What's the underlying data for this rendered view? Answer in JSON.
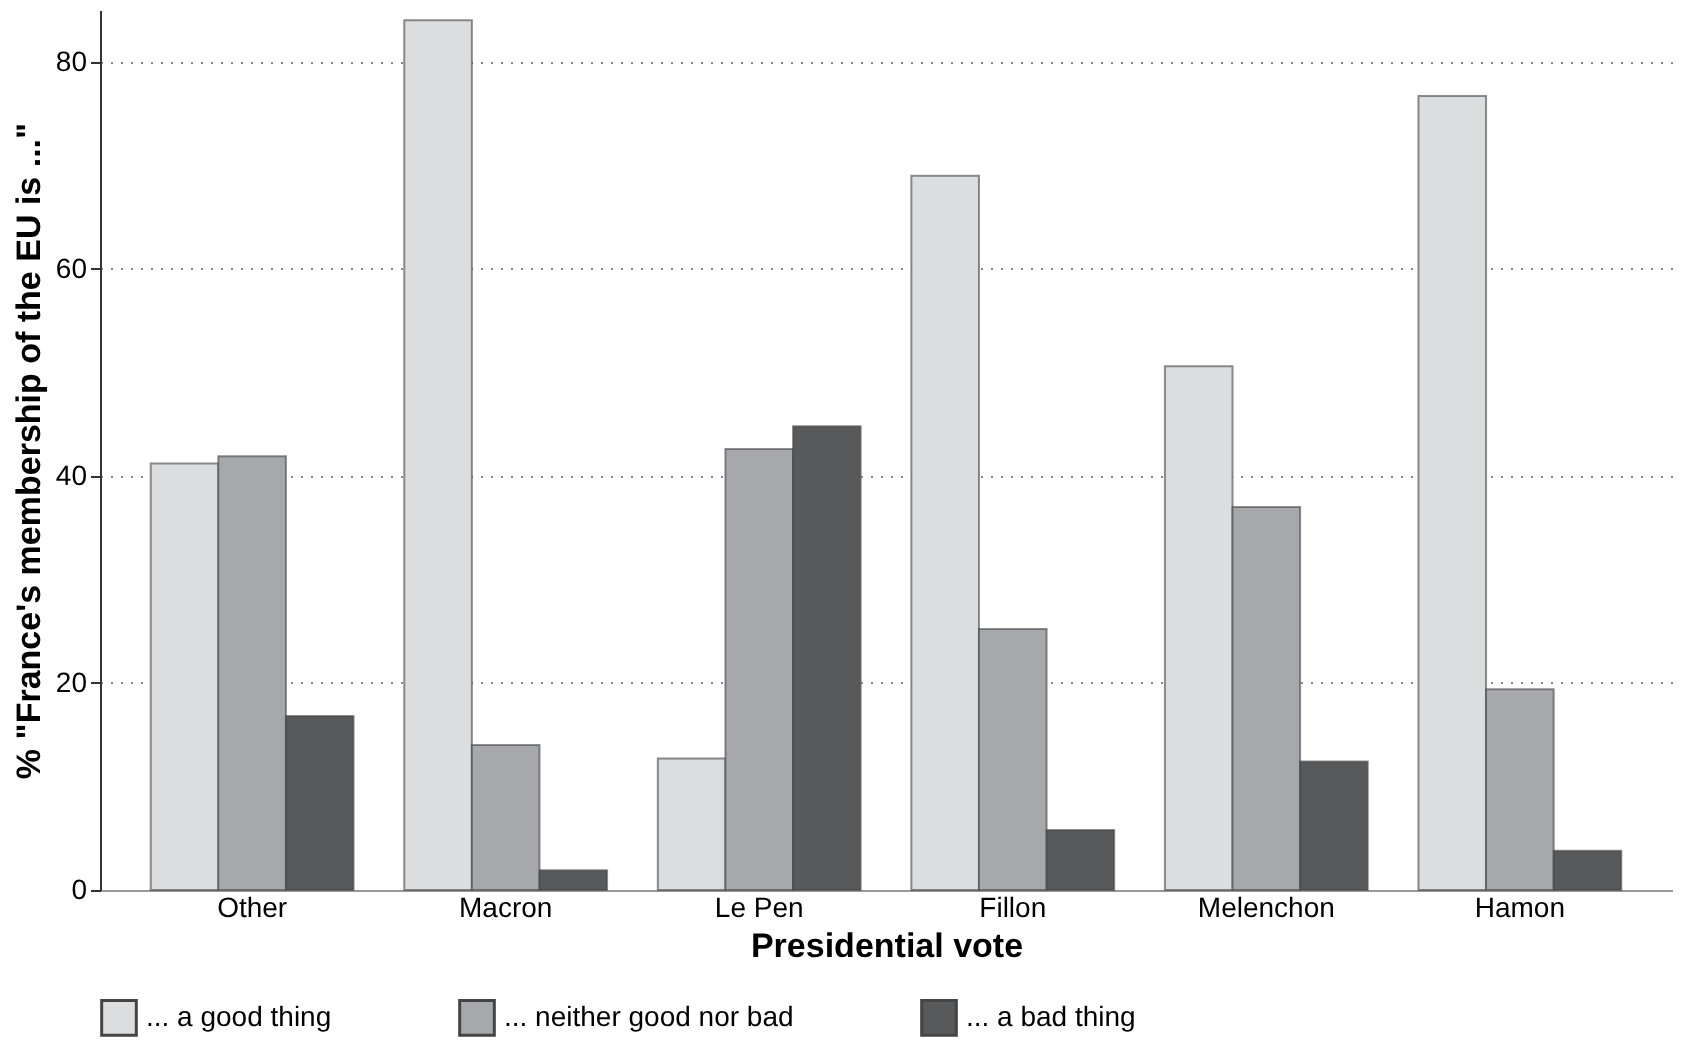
{
  "chart_data": {
    "type": "bar",
    "xlabel": "Presidential vote",
    "ylabel": "% \"France's membership of the EU is ...\"",
    "categories": [
      "Other",
      "Macron",
      "Le Pen",
      "Fillon",
      "Melenchon",
      "Hamon"
    ],
    "series": [
      {
        "name": "... a good thing",
        "color": "#dcdddf",
        "values": [
          41.2,
          84.0,
          12.7,
          69.0,
          50.6,
          76.7
        ]
      },
      {
        "name": "... neither good nor bad",
        "color": "#a7a8ab",
        "values": [
          41.9,
          14.0,
          42.6,
          25.2,
          37.0,
          19.4
        ]
      },
      {
        "name": "... a bad thing",
        "color": "#58595b",
        "values": [
          16.8,
          1.9,
          44.8,
          5.8,
          12.4,
          3.8
        ]
      }
    ],
    "ylim": [
      0,
      85
    ],
    "yticks": [
      0,
      20,
      40,
      60,
      80
    ],
    "grid": "y",
    "legend": "bottom"
  }
}
